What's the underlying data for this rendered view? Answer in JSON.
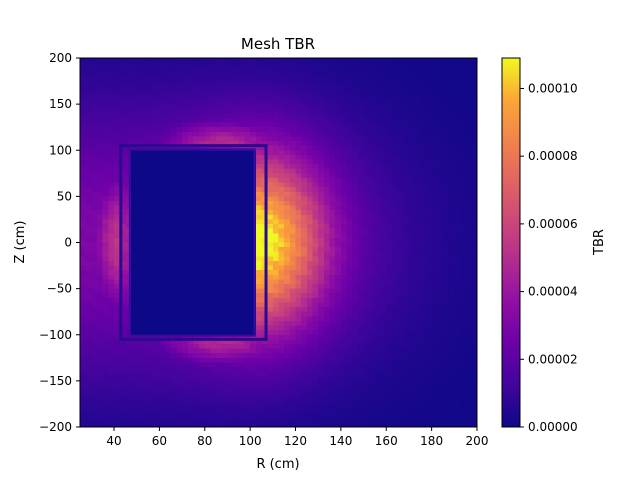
{
  "chart_data": {
    "type": "heatmap",
    "title": "Mesh TBR",
    "xlabel": "R (cm)",
    "ylabel": "Z (cm)",
    "xlim": [
      25,
      200
    ],
    "ylim": [
      -200,
      200
    ],
    "x_ticks": [
      40,
      60,
      80,
      100,
      120,
      140,
      160,
      180,
      200
    ],
    "y_ticks": [
      -200,
      -150,
      -100,
      -50,
      0,
      50,
      100,
      150,
      200
    ],
    "colormap": "plasma",
    "colorbar": {
      "label": "TBR",
      "range": [
        0,
        0.000109
      ],
      "ticks": [
        "0.00000",
        "0.00002",
        "0.00004",
        "0.00006",
        "0.00008",
        "0.00010"
      ],
      "tick_values": [
        0,
        2e-05,
        4e-05,
        6e-05,
        8e-05,
        0.0001
      ]
    },
    "structures": [
      {
        "name": "outer blanket boundary",
        "r": [
          43,
          107
        ],
        "z": [
          -105,
          105
        ]
      },
      {
        "name": "inner region",
        "r": [
          47,
          102
        ],
        "z": [
          -101,
          101
        ]
      }
    ],
    "field_description": {
      "peak_r": 104,
      "peak_z": 0,
      "peak_value": 0.0001,
      "inner_region_value": 0
    }
  }
}
